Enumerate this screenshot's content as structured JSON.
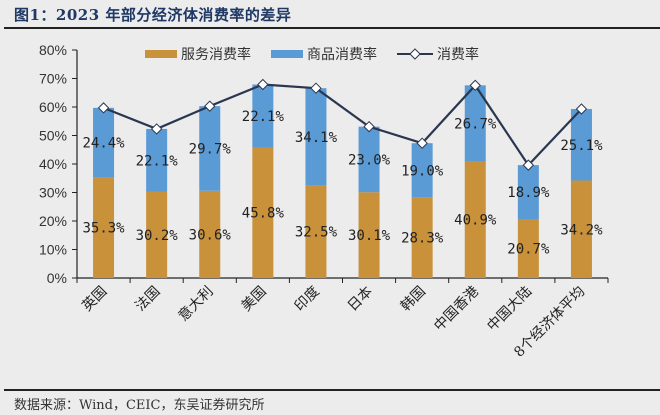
{
  "header": {
    "title": "图1：2023 年部分经济体消费率的差异"
  },
  "footer": {
    "source": "数据来源：Wind，CEIC，东吴证券研究所"
  },
  "legend": [
    {
      "label": "服务消费率",
      "color": "#c8913a",
      "type": "bar"
    },
    {
      "label": "商品消费率",
      "color": "#5b9bd5",
      "type": "bar"
    },
    {
      "label": "消费率",
      "color": "#2b3650",
      "type": "line-diamond"
    }
  ],
  "chart_data": {
    "type": "bar",
    "stacked": true,
    "title": "2023 年部分经济体消费率的差异",
    "xlabel": "",
    "ylabel": "",
    "ylim": [
      0,
      80
    ],
    "yticks": [
      "0%",
      "10%",
      "20%",
      "30%",
      "40%",
      "50%",
      "60%",
      "70%",
      "80%"
    ],
    "grid": false,
    "legend_position": "top",
    "categories": [
      "英国",
      "法国",
      "意大利",
      "美国",
      "印度",
      "日本",
      "韩国",
      "中国香港",
      "中国大陆",
      "8个经济体平均"
    ],
    "series": [
      {
        "name": "服务消费率",
        "type": "bar",
        "color": "#c8913a",
        "values": [
          35.3,
          30.2,
          30.6,
          45.8,
          32.5,
          30.1,
          28.3,
          40.9,
          20.7,
          34.2
        ],
        "labels": [
          "35.3%",
          "30.2%",
          "30.6%",
          "45.8%",
          "32.5%",
          "30.1%",
          "28.3%",
          "40.9%",
          "20.7%",
          "34.2%"
        ]
      },
      {
        "name": "商品消费率",
        "type": "bar",
        "color": "#5b9bd5",
        "values": [
          24.4,
          22.1,
          29.7,
          22.1,
          34.1,
          23.0,
          19.0,
          26.7,
          18.9,
          25.1
        ],
        "labels": [
          "24.4%",
          "22.1%",
          "29.7%",
          "22.1%",
          "34.1%",
          "23.0%",
          "19.0%",
          "26.7%",
          "18.9%",
          "25.1%"
        ]
      },
      {
        "name": "消费率",
        "type": "line",
        "marker": "diamond",
        "color": "#2b3650",
        "values": [
          59.7,
          52.3,
          60.3,
          67.9,
          66.6,
          53.1,
          47.3,
          67.6,
          39.6,
          59.3
        ]
      }
    ]
  }
}
